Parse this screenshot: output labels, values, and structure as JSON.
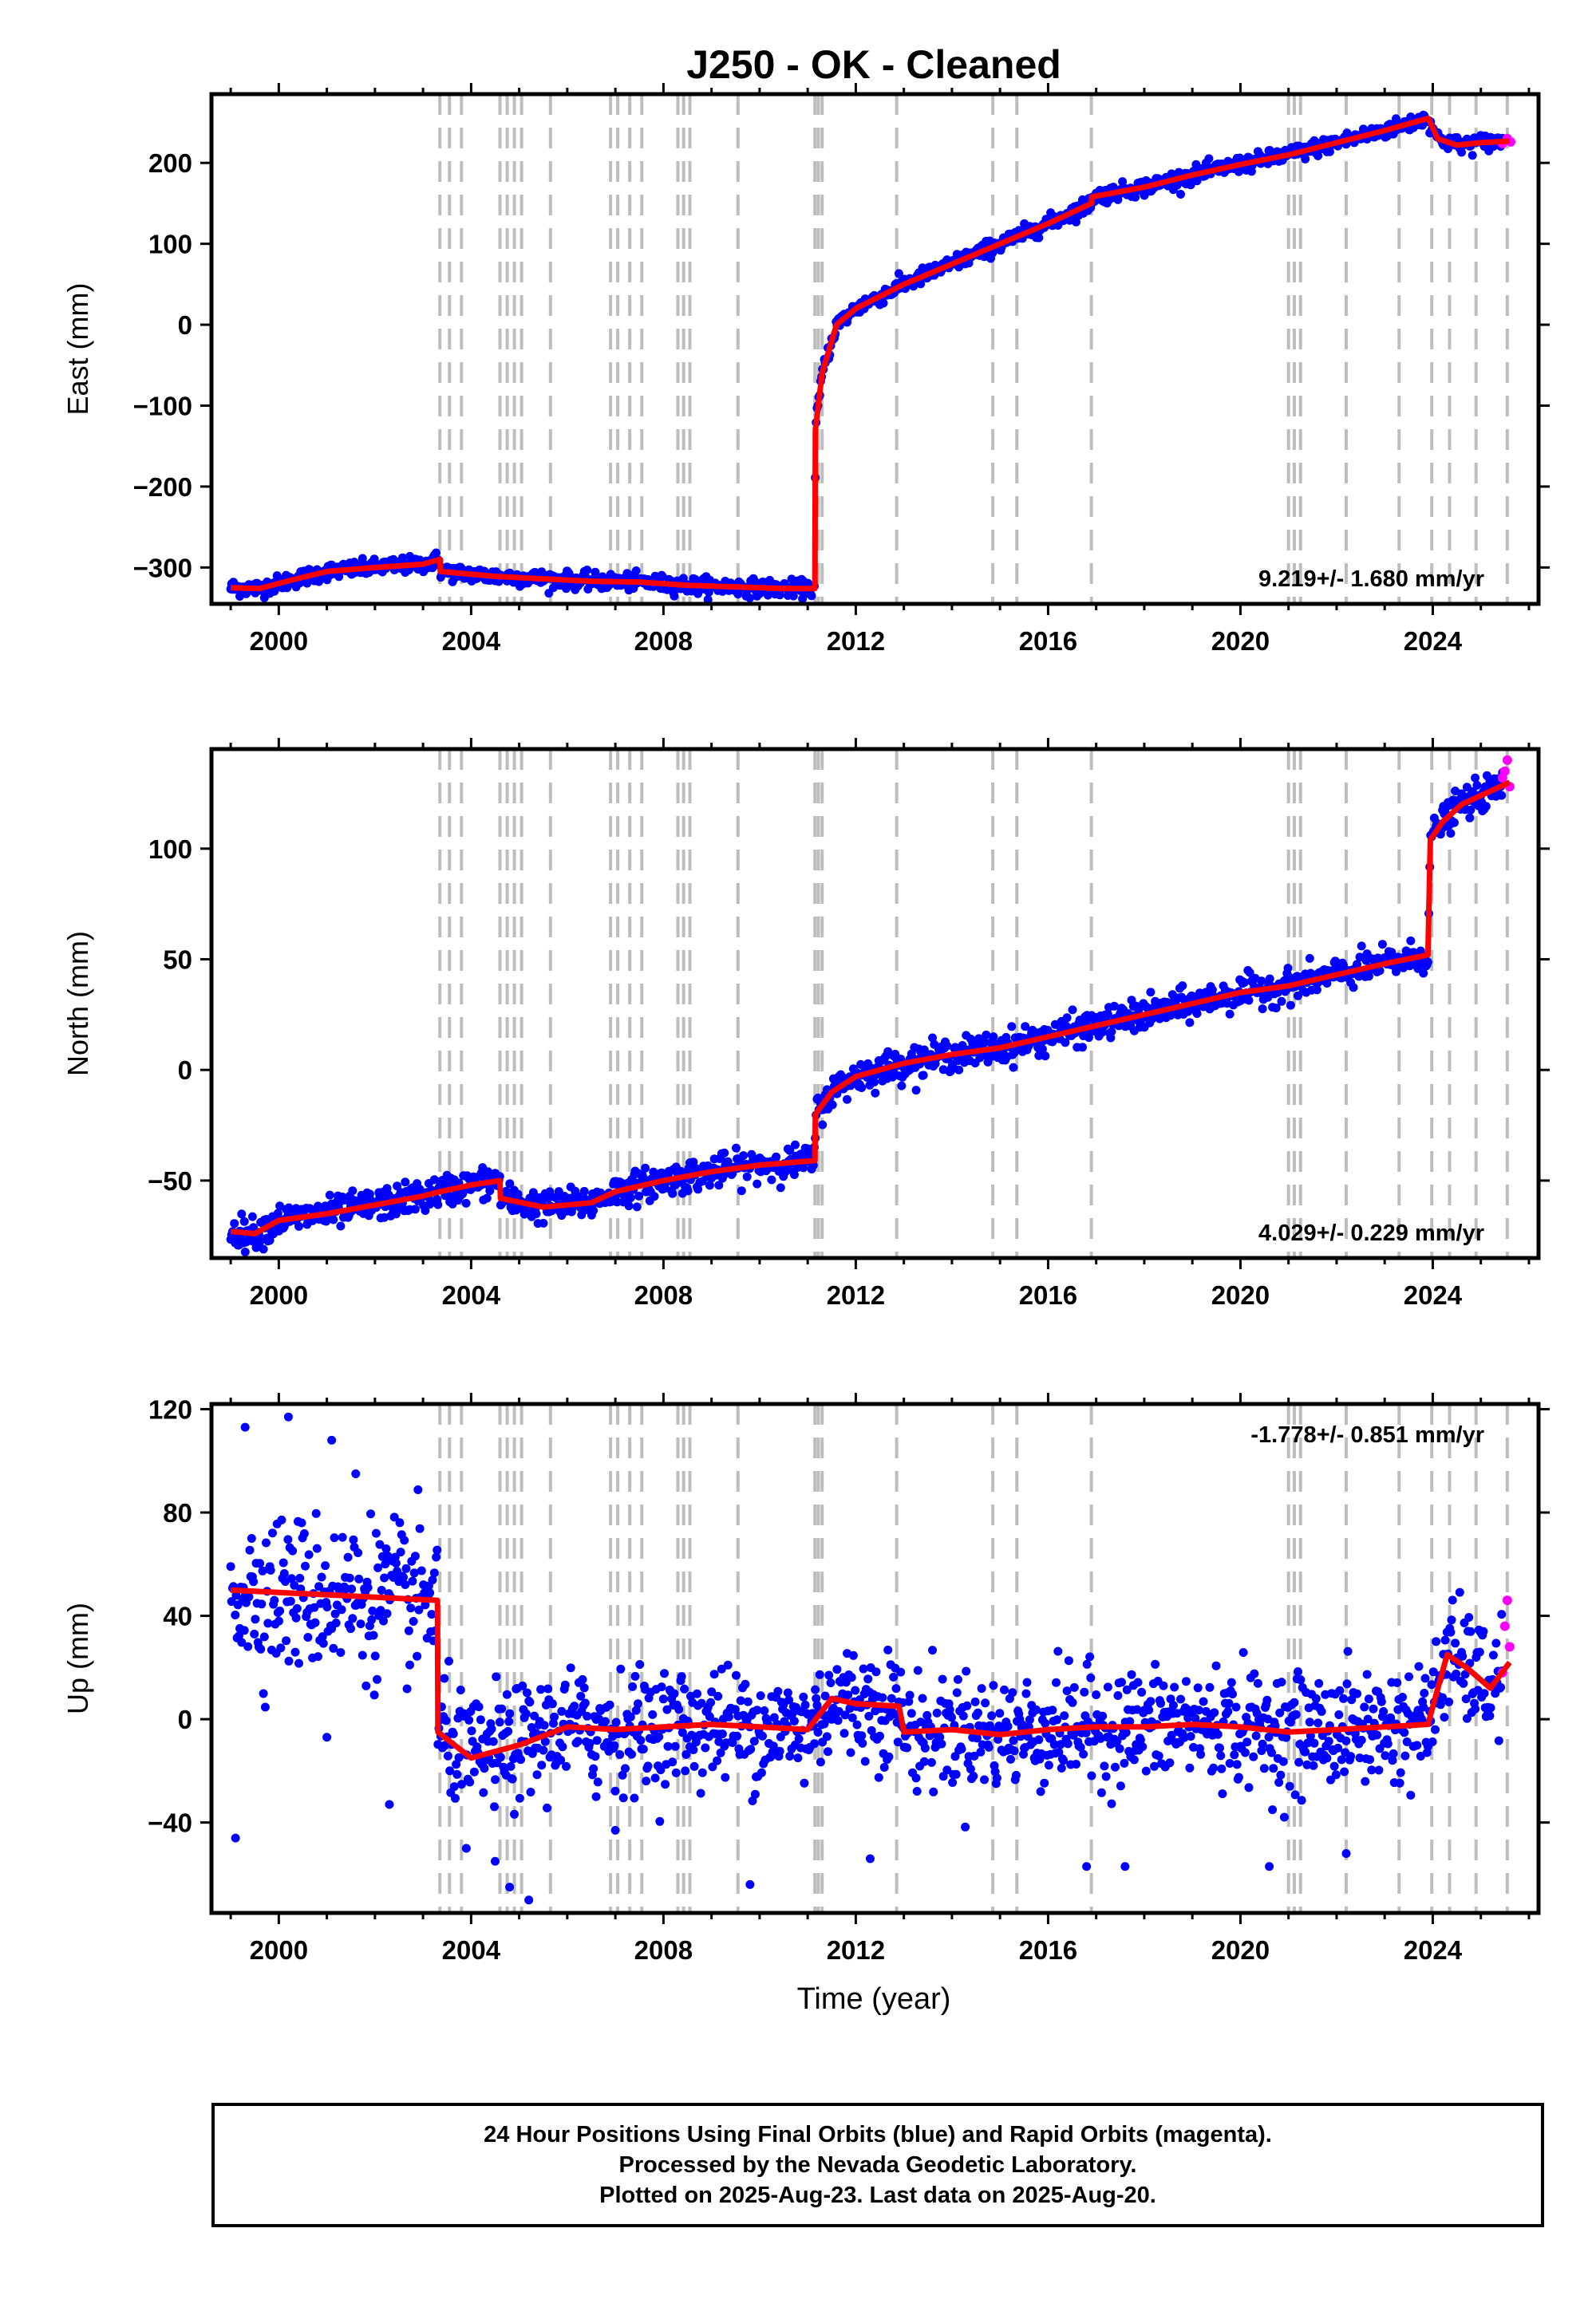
{
  "figure": {
    "title": "J250  - OK - Cleaned",
    "xlabel": "Time (year)"
  },
  "chart_data": [
    {
      "type": "scatter",
      "component": "east",
      "ylabel": "East (mm)",
      "xlim": [
        1998.6,
        2026.2
      ],
      "ylim": [
        -345,
        285
      ],
      "yticks": [
        -300,
        -200,
        -100,
        0,
        100,
        200
      ],
      "xticks": [
        2000,
        2004,
        2008,
        2012,
        2016,
        2020,
        2024
      ],
      "rate_label": "9.219+/- 1.680 mm/yr",
      "rate_position": "bottom-right",
      "series": [
        {
          "name": "Final Orbits",
          "color": "#0000ff",
          "points_from": "model",
          "noise": 5
        },
        {
          "name": "Rapid Orbits",
          "color": "#ff00ff",
          "x": [
            2025.45,
            2025.55,
            2025.62
          ],
          "y": [
            224,
            230,
            226
          ]
        },
        {
          "name": "Model",
          "color": "#ff0000",
          "x": [
            1999.0,
            1999.6,
            2000.3,
            2001.0,
            2002.0,
            2003.0,
            2003.35,
            2003.36,
            2004.5,
            2005.5,
            2006.5,
            2007.5,
            2008.5,
            2009.5,
            2010.5,
            2011.15,
            2011.16,
            2011.3,
            2011.6,
            2012.0,
            2012.5,
            2013.0,
            2014.0,
            2015.0,
            2016.0,
            2016.9,
            2016.91,
            2018.0,
            2019.0,
            2020.0,
            2021.0,
            2022.0,
            2023.0,
            2023.9,
            2023.95,
            2024.1,
            2024.5,
            2025.0,
            2025.6
          ],
          "y": [
            -325,
            -326,
            -315,
            -305,
            -300,
            -296,
            -290,
            -305,
            -311,
            -314,
            -317,
            -318,
            -322,
            -324,
            -326,
            -326,
            -130,
            -60,
            0,
            20,
            35,
            50,
            75,
            100,
            125,
            150,
            158,
            170,
            185,
            198,
            210,
            225,
            240,
            255,
            250,
            230,
            222,
            225,
            227
          ]
        }
      ]
    },
    {
      "type": "scatter",
      "component": "north",
      "ylabel": "North (mm)",
      "xlim": [
        1998.6,
        2026.2
      ],
      "ylim": [
        -85,
        145
      ],
      "yticks": [
        -50,
        0,
        50,
        100
      ],
      "xticks": [
        2000,
        2004,
        2008,
        2012,
        2016,
        2020,
        2024
      ],
      "rate_label": "4.029+/- 0.229 mm/yr",
      "rate_position": "bottom-right",
      "series": [
        {
          "name": "Final Orbits",
          "color": "#0000ff",
          "points_from": "model",
          "noise": 3.5
        },
        {
          "name": "Rapid Orbits",
          "color": "#ff00ff",
          "x": [
            2025.45,
            2025.5,
            2025.55,
            2025.6
          ],
          "y": [
            132,
            135,
            140,
            128
          ]
        },
        {
          "name": "Model",
          "color": "#ff0000",
          "x": [
            1999.0,
            1999.5,
            2000.0,
            2001.0,
            2002.0,
            2003.0,
            2003.35,
            2004.0,
            2004.6,
            2004.61,
            2005.5,
            2006.5,
            2007.0,
            2008.0,
            2009.0,
            2010.0,
            2011.15,
            2011.16,
            2011.5,
            2012.0,
            2013.0,
            2014.0,
            2015.0,
            2016.0,
            2017.0,
            2018.0,
            2019.0,
            2020.0,
            2021.0,
            2022.0,
            2023.0,
            2023.9,
            2023.95,
            2024.2,
            2024.6,
            2025.0,
            2025.6
          ],
          "y": [
            -73,
            -74,
            -68,
            -65,
            -61,
            -57,
            -55,
            -52,
            -50,
            -58,
            -62,
            -60,
            -55,
            -50,
            -46,
            -43,
            -41,
            -20,
            -10,
            -3,
            3,
            7,
            10,
            15,
            20,
            25,
            30,
            35,
            38,
            43,
            48,
            52,
            104,
            112,
            120,
            124,
            130
          ]
        }
      ]
    },
    {
      "type": "scatter",
      "component": "up",
      "ylabel": "Up (mm)",
      "xlim": [
        1998.6,
        2026.2
      ],
      "ylim": [
        -75,
        122
      ],
      "yticks": [
        -40,
        0,
        40,
        80,
        120
      ],
      "xticks": [
        2000,
        2004,
        2008,
        2012,
        2016,
        2020,
        2024
      ],
      "rate_label": "-1.778+/- 0.851 mm/yr",
      "rate_position": "top-right",
      "series": [
        {
          "name": "Final Orbits",
          "color": "#0000ff",
          "points_from": "model",
          "noise": 11
        },
        {
          "name": "Rapid Orbits",
          "color": "#ff00ff",
          "x": [
            2025.45,
            2025.5,
            2025.55,
            2025.6
          ],
          "y": [
            18,
            36,
            46,
            28
          ]
        },
        {
          "name": "Model",
          "color": "#ff0000",
          "x": [
            1999.0,
            2003.3,
            2003.31,
            2004.0,
            2005.0,
            2006.0,
            2007.0,
            2008.0,
            2009.0,
            2010.0,
            2011.0,
            2011.5,
            2012.0,
            2012.9,
            2013.0,
            2014.0,
            2015.0,
            2016.0,
            2017.0,
            2018.0,
            2019.0,
            2020.0,
            2021.0,
            2022.0,
            2023.0,
            2023.9,
            2024.3,
            2024.7,
            2025.2,
            2025.6
          ],
          "y": [
            50,
            46,
            -5,
            -15,
            -10,
            -3,
            -4,
            -3,
            -2,
            -3,
            -4,
            8,
            6,
            5,
            -5,
            -4,
            -6,
            -4,
            -3,
            -3,
            -2,
            -3,
            -5,
            -4,
            -3,
            -2,
            25,
            20,
            12,
            22
          ]
        },
        {
          "name": "Outliers",
          "color": "#0000ff",
          "x": [
            1999.3,
            2000.2,
            2001.1,
            2001.6,
            2002.3,
            2003.9,
            2004.5,
            2004.8,
            2005.2,
            2007.0,
            2009.8,
            2012.3,
            2016.8,
            2017.6,
            2020.6,
            2022.2,
            1999.1,
            2001.0,
            2006.6
          ],
          "y": [
            113,
            117,
            108,
            95,
            -33,
            -50,
            -55,
            -65,
            -70,
            -43,
            -64,
            -54,
            -57,
            -57,
            -57,
            -52,
            -46,
            -7,
            -30
          ]
        }
      ]
    }
  ],
  "event_lines": [
    2003.35,
    2003.55,
    2003.8,
    2004.6,
    2004.75,
    2004.9,
    2005.05,
    2005.65,
    2006.9,
    2007.05,
    2007.3,
    2007.55,
    2008.3,
    2008.42,
    2008.55,
    2009.55,
    2011.15,
    2011.22,
    2011.3,
    2012.85,
    2014.85,
    2015.35,
    2016.9,
    2021.0,
    2021.12,
    2021.25,
    2022.2,
    2023.3,
    2023.98,
    2024.35,
    2024.9,
    2025.55
  ],
  "footer": {
    "line1": "24 Hour Positions Using Final Orbits (blue) and Rapid Orbits (magenta).",
    "line2": "Processed by the Nevada Geodetic Laboratory.",
    "line3": "Plotted on 2025-Aug-23. Last data on 2025-Aug-20."
  }
}
